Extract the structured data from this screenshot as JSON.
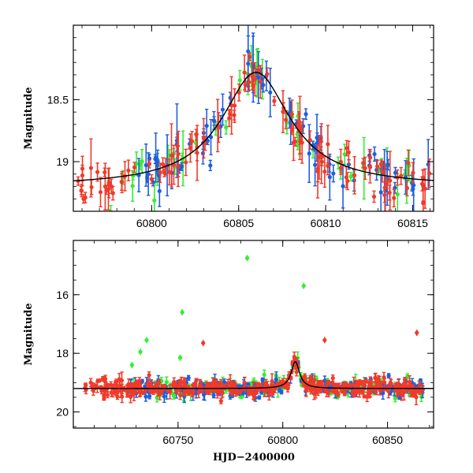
{
  "chart_data": [
    {
      "type": "scatter",
      "title": "",
      "xlabel": "",
      "ylabel": "Magnitude",
      "x_ticks": [
        60800,
        60805,
        60810,
        60815
      ],
      "y_ticks": [
        18.5,
        19
      ],
      "xlim": [
        60795.5,
        60816.2
      ],
      "ylim": [
        19.4,
        17.9
      ],
      "y_inverted": true,
      "model_curve": {
        "type": "lorentzian-like",
        "peak_x": 60806.0,
        "peak_mag": 18.28,
        "baseline_mag": 19.2
      },
      "series": [
        {
          "color": "#33ee33",
          "x_start": 60796.6,
          "x_end": 60815.0,
          "n": 55,
          "seed": 11
        },
        {
          "color": "#1e5fe0",
          "x_start": 60799.0,
          "x_end": 60816.0,
          "n": 80,
          "seed": 23
        },
        {
          "color": "#f03a2a",
          "x_start": 60795.6,
          "x_end": 60816.1,
          "n": 120,
          "seed": 37
        }
      ]
    },
    {
      "type": "scatter",
      "title": "",
      "xlabel": "HJD−2400000",
      "ylabel": "Magnitude",
      "x_ticks": [
        60750,
        60800,
        60850
      ],
      "y_ticks": [
        16,
        18,
        20
      ],
      "xlim": [
        60700,
        60872
      ],
      "ylim": [
        20.55,
        14.15
      ],
      "y_inverted": true,
      "model_curve": {
        "type": "lorentzian-like",
        "peak_x": 60806.0,
        "peak_mag": 18.28,
        "baseline_mag": 19.2
      },
      "outliers": [
        {
          "x": 60783,
          "y": 14.75,
          "color": "#33ee33"
        },
        {
          "x": 60810,
          "y": 15.7,
          "color": "#33ee33"
        },
        {
          "x": 60752,
          "y": 16.6,
          "color": "#33ee33"
        },
        {
          "x": 60735,
          "y": 17.55,
          "color": "#33ee33"
        },
        {
          "x": 60762,
          "y": 17.65,
          "color": "#f03a2a"
        },
        {
          "x": 60864,
          "y": 17.3,
          "color": "#f03a2a"
        },
        {
          "x": 60732,
          "y": 17.95,
          "color": "#33ee33"
        },
        {
          "x": 60751,
          "y": 18.15,
          "color": "#33ee33"
        },
        {
          "x": 60728,
          "y": 18.4,
          "color": "#33ee33"
        },
        {
          "x": 60820,
          "y": 17.55,
          "color": "#f03a2a"
        }
      ],
      "series": [
        {
          "color": "#33ee33",
          "x_start": 60727,
          "x_end": 60867,
          "n": 160,
          "seed": 51
        },
        {
          "color": "#1e5fe0",
          "x_start": 60727,
          "x_end": 60867,
          "n": 200,
          "seed": 63
        },
        {
          "color": "#f03a2a",
          "x_start": 60705,
          "x_end": 60867,
          "n": 380,
          "seed": 77
        }
      ]
    }
  ]
}
